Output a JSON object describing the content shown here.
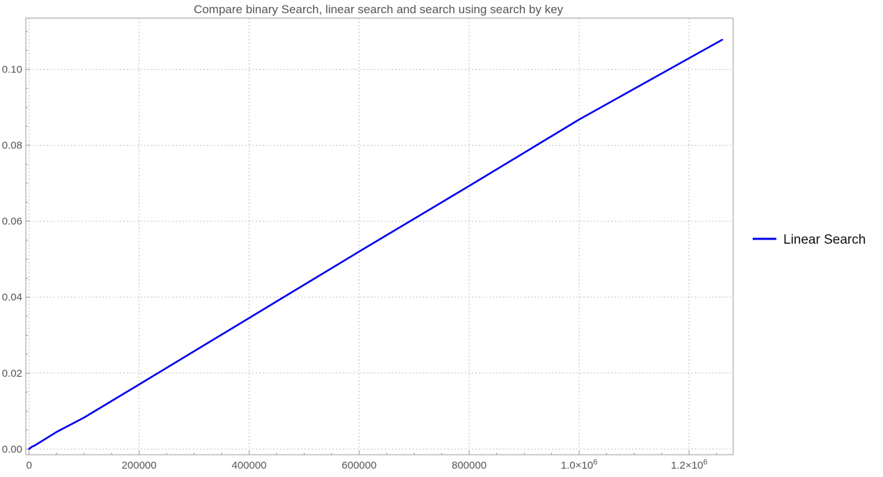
{
  "chart_data": {
    "type": "line",
    "title": "Compare binary Search, linear search and search using search by key",
    "xlabel": "",
    "ylabel": "",
    "xlim": [
      -6000,
      1280000
    ],
    "ylim": [
      -0.0015,
      0.1135
    ],
    "x_ticks": [
      {
        "value": 0,
        "label": "0"
      },
      {
        "value": 200000,
        "label": "200000"
      },
      {
        "value": 400000,
        "label": "400000"
      },
      {
        "value": 600000,
        "label": "600000"
      },
      {
        "value": 800000,
        "label": "800000"
      },
      {
        "value": 1000000,
        "label": "1.0×10",
        "sup": "6"
      },
      {
        "value": 1200000,
        "label": "1.2×10",
        "sup": "6"
      }
    ],
    "y_ticks": [
      {
        "value": 0,
        "label": "0.00"
      },
      {
        "value": 0.02,
        "label": "0.02"
      },
      {
        "value": 0.04,
        "label": "0.04"
      },
      {
        "value": 0.06,
        "label": "0.06"
      },
      {
        "value": 0.08,
        "label": "0.08"
      },
      {
        "value": 0.1,
        "label": "0.10"
      }
    ],
    "grid": true,
    "legend_position": "right",
    "series": [
      {
        "name": "Linear Search",
        "color": "#0000ee",
        "x": [
          0,
          5000,
          10000,
          50000,
          100000,
          200000,
          400000,
          600000,
          800000,
          1000000,
          1260000
        ],
        "y": [
          0.0,
          0.0006,
          0.0009,
          0.0045,
          0.0083,
          0.017,
          0.0345,
          0.052,
          0.0693,
          0.0868,
          0.1078
        ]
      }
    ]
  }
}
